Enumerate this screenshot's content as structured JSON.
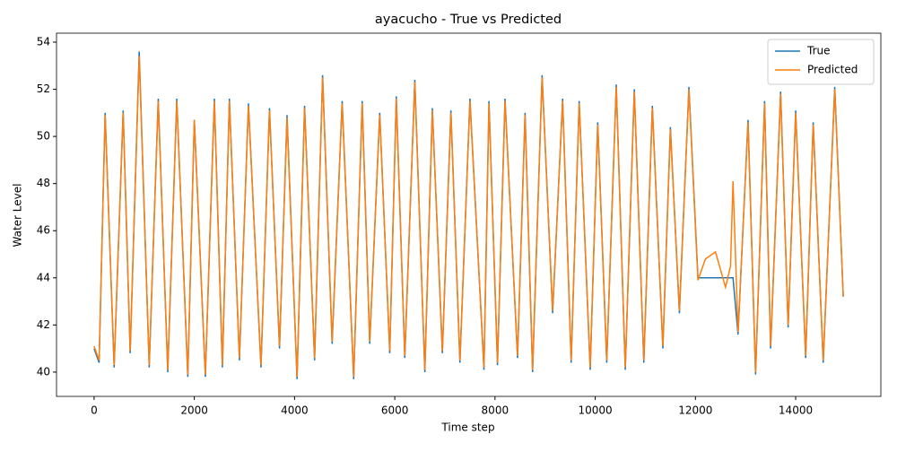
{
  "chart_data": {
    "type": "line",
    "title": "ayacucho - True vs Predicted",
    "xlabel": "Time step",
    "ylabel": "Water Level",
    "x": [
      0,
      100,
      220,
      400,
      580,
      720,
      900,
      1100,
      1280,
      1470,
      1650,
      1870,
      2000,
      2220,
      2400,
      2560,
      2700,
      2900,
      3080,
      3330,
      3500,
      3700,
      3850,
      4050,
      4200,
      4400,
      4560,
      4750,
      4950,
      5180,
      5350,
      5500,
      5700,
      5900,
      6030,
      6200,
      6400,
      6600,
      6750,
      6950,
      7120,
      7300,
      7500,
      7780,
      7880,
      8050,
      8200,
      8450,
      8600,
      8750,
      8940,
      9150,
      9350,
      9520,
      9680,
      9900,
      10050,
      10230,
      10420,
      10600,
      10780,
      10970,
      11140,
      11350,
      11500,
      11680,
      11870,
      12050,
      12200,
      12400,
      12600,
      12700,
      12750,
      12850,
      13050,
      13200,
      13380,
      13500,
      13700,
      13850,
      14000,
      14200,
      14350,
      14550,
      14780,
      14950
    ],
    "series": [
      {
        "name": "True",
        "color": "#1f77b4",
        "values": [
          41.0,
          40.4,
          51.0,
          40.2,
          51.1,
          40.8,
          53.6,
          40.2,
          51.6,
          40.0,
          51.6,
          39.8,
          50.7,
          39.8,
          51.6,
          40.2,
          51.6,
          40.5,
          51.4,
          40.2,
          51.2,
          41.0,
          50.9,
          39.7,
          51.3,
          40.5,
          52.6,
          41.2,
          51.5,
          39.7,
          51.5,
          41.2,
          51.0,
          40.8,
          51.7,
          40.6,
          52.4,
          40.0,
          51.2,
          40.8,
          51.1,
          40.4,
          51.6,
          40.1,
          51.5,
          40.3,
          51.6,
          40.6,
          51.0,
          40.0,
          52.6,
          42.5,
          51.6,
          40.4,
          51.5,
          40.1,
          50.6,
          40.4,
          52.2,
          40.1,
          52.0,
          40.4,
          51.3,
          41.0,
          50.4,
          42.5,
          52.1,
          44.0,
          44.0,
          44.0,
          44.0,
          44.0,
          44.0,
          41.6,
          50.7,
          39.9,
          51.5,
          41.0,
          51.9,
          41.9,
          51.1,
          40.6,
          50.6,
          40.4,
          52.1,
          43.2
        ]
      },
      {
        "name": "Predicted",
        "color": "#ff7f0e",
        "values": [
          41.1,
          40.5,
          50.9,
          40.3,
          51.0,
          40.9,
          53.4,
          40.3,
          51.5,
          40.1,
          51.5,
          39.9,
          50.7,
          39.9,
          51.5,
          40.3,
          51.5,
          40.6,
          51.3,
          40.3,
          51.1,
          41.1,
          50.8,
          39.8,
          51.2,
          40.6,
          52.5,
          41.3,
          51.4,
          39.8,
          51.4,
          41.3,
          50.9,
          40.9,
          51.6,
          40.7,
          52.3,
          40.1,
          51.1,
          40.9,
          51.0,
          40.5,
          51.5,
          40.2,
          51.4,
          40.4,
          51.5,
          40.7,
          50.9,
          40.1,
          52.5,
          42.6,
          51.5,
          40.5,
          51.4,
          40.2,
          50.5,
          40.5,
          52.1,
          40.2,
          51.9,
          40.5,
          51.2,
          41.1,
          50.3,
          42.6,
          52.0,
          43.9,
          44.8,
          45.1,
          43.6,
          44.5,
          48.1,
          41.7,
          50.6,
          40.0,
          51.4,
          41.1,
          51.8,
          42.0,
          51.0,
          40.7,
          50.5,
          40.5,
          52.0,
          43.2
        ]
      }
    ],
    "xlim": [
      -750,
      15700
    ],
    "xticks": [
      0,
      2000,
      4000,
      6000,
      8000,
      10000,
      12000,
      14000
    ],
    "ylim": [
      38.97,
      54.38
    ],
    "yticks": [
      40,
      42,
      44,
      46,
      48,
      50,
      52,
      54
    ],
    "legend": "upper right"
  }
}
